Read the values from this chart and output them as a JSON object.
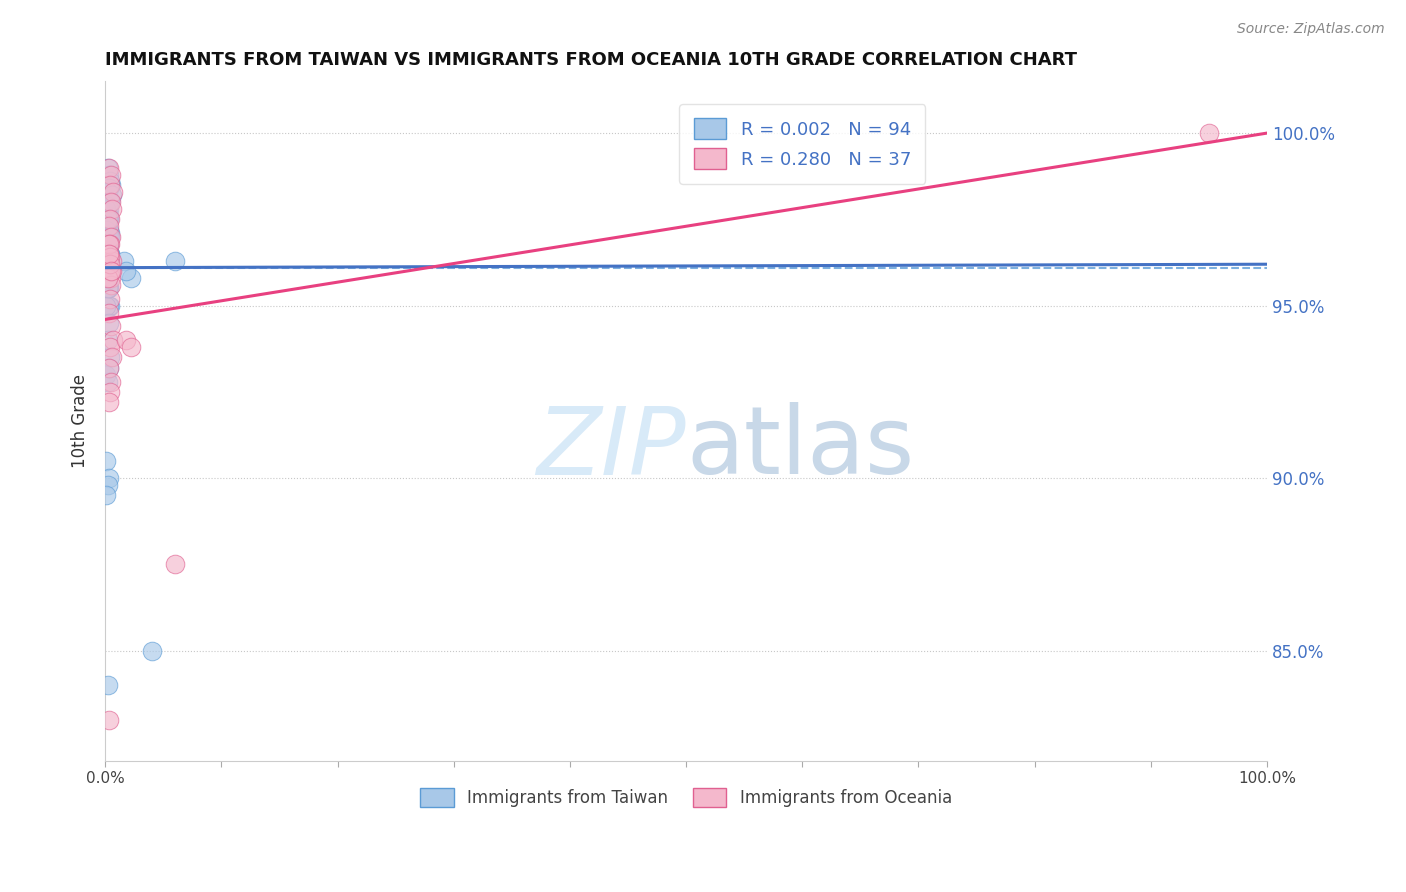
{
  "title": "IMMIGRANTS FROM TAIWAN VS IMMIGRANTS FROM OCEANIA 10TH GRADE CORRELATION CHART",
  "source_text": "Source: ZipAtlas.com",
  "ylabel": "10th Grade",
  "xlim": [
    0.0,
    1.0
  ],
  "ylim": [
    0.818,
    1.015
  ],
  "x_tick_labels": [
    "0.0%",
    "",
    "",
    "",
    "",
    "",
    "",
    "",
    "",
    "",
    "100.0%"
  ],
  "x_tick_positions": [
    0.0,
    0.1,
    0.2,
    0.3,
    0.4,
    0.5,
    0.6,
    0.7,
    0.8,
    0.9,
    1.0
  ],
  "right_y_tick_labels": [
    "85.0%",
    "90.0%",
    "95.0%",
    "100.0%"
  ],
  "right_y_tick_positions": [
    0.85,
    0.9,
    0.95,
    1.0
  ],
  "legend_taiwan": "Immigrants from Taiwan",
  "legend_oceania": "Immigrants from Oceania",
  "r_taiwan": "0.002",
  "n_taiwan": "94",
  "r_oceania": "0.280",
  "n_oceania": "37",
  "color_taiwan_fill": "#a8c8e8",
  "color_taiwan_edge": "#5b9bd5",
  "color_oceania_fill": "#f4b8cc",
  "color_oceania_edge": "#e06090",
  "color_taiwan_line": "#4472c4",
  "color_oceania_line": "#e84080",
  "color_dashed_ref": "#6fa8dc",
  "color_grid": "#c8c8c8",
  "watermark_color": "#ddeeff",
  "taiwan_x": [
    0.002,
    0.003,
    0.005,
    0.004,
    0.003,
    0.002,
    0.006,
    0.004,
    0.002,
    0.003,
    0.001,
    0.002,
    0.003,
    0.001,
    0.002,
    0.003,
    0.004,
    0.002,
    0.001,
    0.003,
    0.002,
    0.001,
    0.003,
    0.002,
    0.004,
    0.003,
    0.002,
    0.001,
    0.003,
    0.002,
    0.001,
    0.002,
    0.003,
    0.001,
    0.002,
    0.003,
    0.001,
    0.002,
    0.003,
    0.001,
    0.004,
    0.003,
    0.002,
    0.001,
    0.003,
    0.002,
    0.004,
    0.003,
    0.001,
    0.002,
    0.003,
    0.001,
    0.002,
    0.003,
    0.004,
    0.002,
    0.001,
    0.003,
    0.002,
    0.001,
    0.004,
    0.003,
    0.002,
    0.001,
    0.003,
    0.002,
    0.004,
    0.001,
    0.002,
    0.003,
    0.001,
    0.002,
    0.003,
    0.004,
    0.002,
    0.001,
    0.003,
    0.002,
    0.001,
    0.002,
    0.016,
    0.022,
    0.018,
    0.002,
    0.001,
    0.003,
    0.06,
    0.002,
    0.001,
    0.003,
    0.002,
    0.001,
    0.04,
    0.002
  ],
  "taiwan_y": [
    0.99,
    0.988,
    0.985,
    0.986,
    0.984,
    0.983,
    0.982,
    0.98,
    0.979,
    0.978,
    0.977,
    0.976,
    0.975,
    0.974,
    0.973,
    0.972,
    0.971,
    0.97,
    0.969,
    0.968,
    0.967,
    0.966,
    0.965,
    0.964,
    0.963,
    0.962,
    0.961,
    0.96,
    0.959,
    0.958,
    0.957,
    0.96,
    0.963,
    0.965,
    0.968,
    0.97,
    0.972,
    0.974,
    0.976,
    0.978,
    0.98,
    0.975,
    0.97,
    0.965,
    0.96,
    0.955,
    0.95,
    0.956,
    0.96,
    0.964,
    0.968,
    0.972,
    0.975,
    0.97,
    0.965,
    0.96,
    0.955,
    0.95,
    0.955,
    0.96,
    0.965,
    0.96,
    0.955,
    0.95,
    0.945,
    0.94,
    0.935,
    0.93,
    0.928,
    0.932,
    0.96,
    0.958,
    0.965,
    0.97,
    0.963,
    0.957,
    0.955,
    0.96,
    0.958,
    0.955,
    0.963,
    0.958,
    0.96,
    0.96,
    0.963,
    0.96,
    0.963,
    0.963,
    0.905,
    0.9,
    0.898,
    0.895,
    0.85,
    0.84
  ],
  "oceania_x": [
    0.003,
    0.005,
    0.004,
    0.007,
    0.005,
    0.006,
    0.004,
    0.003,
    0.005,
    0.004,
    0.003,
    0.006,
    0.004,
    0.005,
    0.003,
    0.004,
    0.006,
    0.005,
    0.004,
    0.003,
    0.005,
    0.007,
    0.004,
    0.006,
    0.003,
    0.005,
    0.004,
    0.003,
    0.002,
    0.004,
    0.003,
    0.005,
    0.018,
    0.022,
    0.06,
    0.95,
    0.003
  ],
  "oceania_y": [
    0.99,
    0.988,
    0.985,
    0.983,
    0.98,
    0.978,
    0.975,
    0.973,
    0.97,
    0.968,
    0.965,
    0.963,
    0.96,
    0.958,
    0.968,
    0.964,
    0.96,
    0.956,
    0.952,
    0.948,
    0.944,
    0.94,
    0.938,
    0.935,
    0.932,
    0.928,
    0.925,
    0.922,
    0.958,
    0.962,
    0.965,
    0.96,
    0.94,
    0.938,
    0.875,
    1.0,
    0.83
  ],
  "taiwan_trend_x": [
    0.0,
    1.0
  ],
  "taiwan_trend_y": [
    0.961,
    0.962
  ],
  "oceania_trend_x": [
    0.0,
    1.0
  ],
  "oceania_trend_y": [
    0.946,
    1.0
  ],
  "ref_line_y": 0.961,
  "background_color": "#ffffff"
}
